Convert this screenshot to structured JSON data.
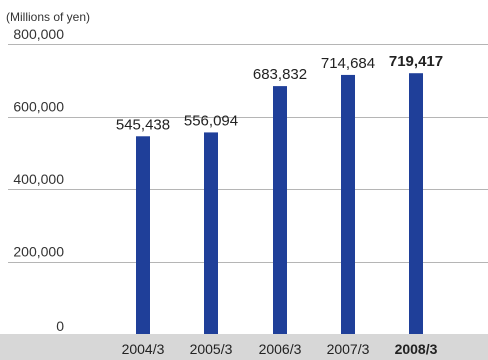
{
  "chart_data": {
    "type": "bar",
    "unit_label": "(Millions of yen)",
    "categories": [
      "2004/3",
      "2005/3",
      "2006/3",
      "2007/3",
      "2008/3"
    ],
    "values": [
      545438,
      556094,
      683832,
      714684,
      719417
    ],
    "value_labels": [
      "545,438",
      "556,094",
      "683,832",
      "714,684",
      "719,417"
    ],
    "highlight_category": "2008/3",
    "ylim": [
      0,
      800000
    ],
    "y_ticks": [
      0,
      200000,
      400000,
      600000,
      800000
    ],
    "y_tick_labels": [
      "0",
      "200,000",
      "400,000",
      "600,000",
      "800,000"
    ],
    "grid": true,
    "bar_color": "#1f3f99",
    "grid_color": "#b5b5b5",
    "axis_band_color": "#d7d7d7"
  }
}
